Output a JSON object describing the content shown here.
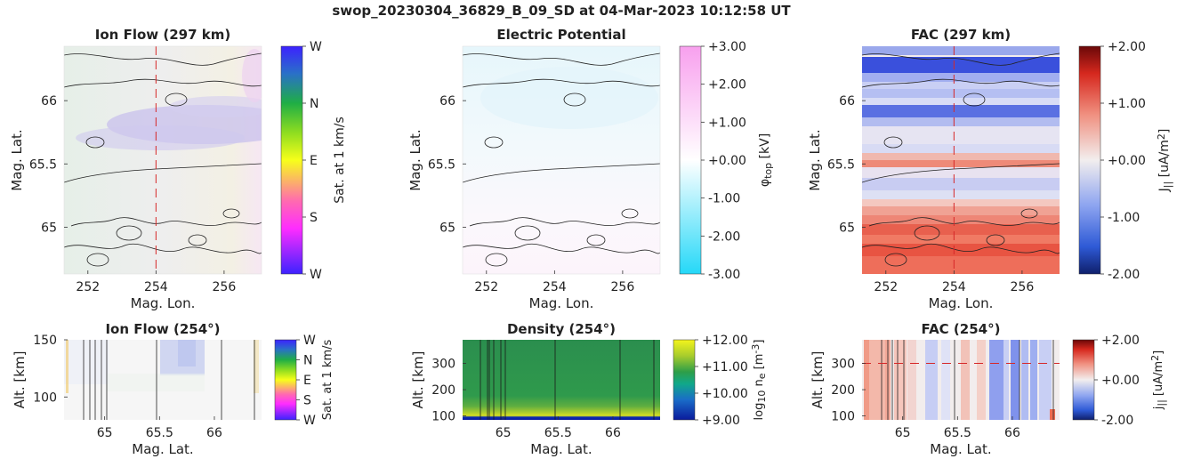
{
  "figure_title": "swop_20230304_36829_B_09_SD at 04-Mar-2023 10:12:58 UT",
  "colors": {
    "dashed_marker": "#d62728",
    "contour": "#222222"
  },
  "chart_data": [
    {
      "id": "ionflow_map",
      "type": "heatmap",
      "title": "Ion Flow (297 km)",
      "xlabel": "Mag. Lon.",
      "ylabel": "Mag. Lat.",
      "xlim": [
        251.3,
        257.1
      ],
      "ylim": [
        64.63,
        66.43
      ],
      "xticks": [
        "252",
        "254",
        "256"
      ],
      "yticks": [
        "65",
        "65.5",
        "66"
      ],
      "marker_lon": 254,
      "colorbar": {
        "label": "Sat. at 1 km/s",
        "ticks": [
          "W",
          "N",
          "E",
          "S",
          "W"
        ]
      }
    },
    {
      "id": "potential_map",
      "type": "heatmap",
      "title": "Electric Potential",
      "xlabel": "Mag. Lon.",
      "ylabel": "Mag. Lat.",
      "xlim": [
        251.3,
        257.1
      ],
      "ylim": [
        64.63,
        66.43
      ],
      "xticks": [
        "252",
        "254",
        "256"
      ],
      "yticks": [
        "65",
        "65.5",
        "66"
      ],
      "colorbar": {
        "label_main": "φ",
        "label_sub": "top",
        "label_unit": " [kV]",
        "range": [
          -3,
          3
        ],
        "ticks": [
          "+3.00",
          "+2.00",
          "+1.00",
          "+0.00",
          "-1.00",
          "-2.00",
          "-3.00"
        ]
      }
    },
    {
      "id": "fac_map",
      "type": "heatmap",
      "title": "FAC (297 km)",
      "xlabel": "Mag. Lon.",
      "ylabel": "Mag. Lat.",
      "xlim": [
        251.3,
        257.1
      ],
      "ylim": [
        64.63,
        66.43
      ],
      "xticks": [
        "252",
        "254",
        "256"
      ],
      "yticks": [
        "65",
        "65.5",
        "66"
      ],
      "marker_lon": 254,
      "colorbar": {
        "label_main": "J",
        "label_sub": "||",
        "label_unit": " [uA/m",
        "label_sup": "2",
        "label_end": "]",
        "range": [
          -2,
          2
        ],
        "ticks": [
          "+2.00",
          "+1.00",
          "+0.00",
          "-1.00",
          "-2.00"
        ]
      }
    },
    {
      "id": "ionflow_alt",
      "type": "heatmap",
      "title": "Ion Flow (254°)",
      "xlabel": "Mag. Lat.",
      "ylabel": "Alt. [km]",
      "xlim": [
        64.63,
        66.43
      ],
      "ylim": [
        80,
        150
      ],
      "xticks": [
        "65",
        "65.5",
        "66"
      ],
      "yticks": [
        "100",
        "150"
      ],
      "colorbar": {
        "label": "Sat. at 1 km/s",
        "ticks": [
          "W",
          "N",
          "E",
          "S",
          "W"
        ]
      }
    },
    {
      "id": "density_alt",
      "type": "heatmap",
      "title": "Density (254°)",
      "xlabel": "Mag. Lat.",
      "ylabel": "Alt. [km]",
      "xlim": [
        64.63,
        66.43
      ],
      "ylim": [
        85,
        390
      ],
      "xticks": [
        "65",
        "65.5",
        "66"
      ],
      "yticks": [
        "100",
        "200",
        "300"
      ],
      "colorbar": {
        "label_main": "log",
        "label_sub": "10",
        "label_unit": " n",
        "label_sub2": "e",
        "label_unit2": " [m",
        "label_sup": "-3",
        "label_end": "]",
        "range": [
          9,
          12
        ],
        "ticks": [
          "+12.00",
          "+11.00",
          "+10.00",
          "+9.00"
        ]
      }
    },
    {
      "id": "fac_alt",
      "type": "heatmap",
      "title": "FAC (254°)",
      "xlabel": "Mag. Lat.",
      "ylabel": "Alt. [km]",
      "xlim": [
        64.63,
        66.43
      ],
      "ylim": [
        85,
        390
      ],
      "xticks": [
        "65",
        "65.5",
        "66"
      ],
      "yticks": [
        "100",
        "200",
        "300"
      ],
      "marker_alt": 300,
      "colorbar": {
        "label_main": "j",
        "label_sub": "||",
        "label_unit": " [uA/m",
        "label_sup": "2",
        "label_end": "]",
        "range": [
          -2,
          2
        ],
        "ticks": [
          "+2.00",
          "+0.00",
          "-2.00"
        ]
      }
    }
  ]
}
